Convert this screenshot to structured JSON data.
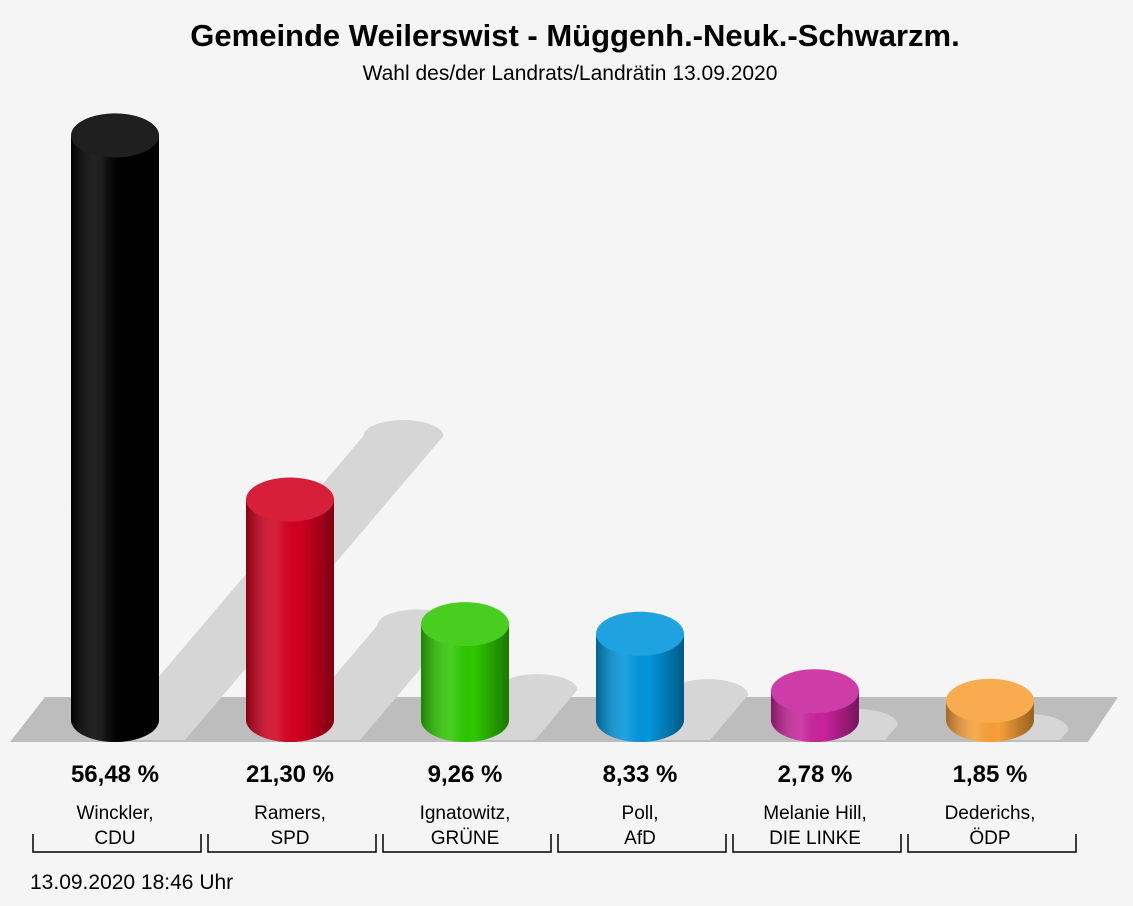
{
  "chart_data": {
    "type": "bar",
    "title": "Gemeinde Weilerswist - Müggenh.-Neuk.-Schwarzm.",
    "subtitle": "Wahl des/der Landrats/Landrätin 13.09.2020",
    "categories": [
      "Winckler,\nCDU",
      "Ramers,\nSPD",
      "Ignatowitz,\nGRÜNE",
      "Poll,\nAfD",
      "Melanie Hill,\nDIE LINKE",
      "Dederichs,\nÖDP"
    ],
    "values": [
      56.48,
      21.3,
      9.26,
      8.33,
      2.78,
      1.85
    ],
    "value_labels": [
      "56,48 %",
      "21,30 %",
      "9,26 %",
      "8,33 %",
      "2,78 %",
      "1,85 %"
    ],
    "colors": [
      "#000000",
      "#d2001e",
      "#2ec800",
      "#0096dc",
      "#c8239b",
      "#f9a037"
    ],
    "footer": "13.09.2020 18:46 Uhr"
  }
}
